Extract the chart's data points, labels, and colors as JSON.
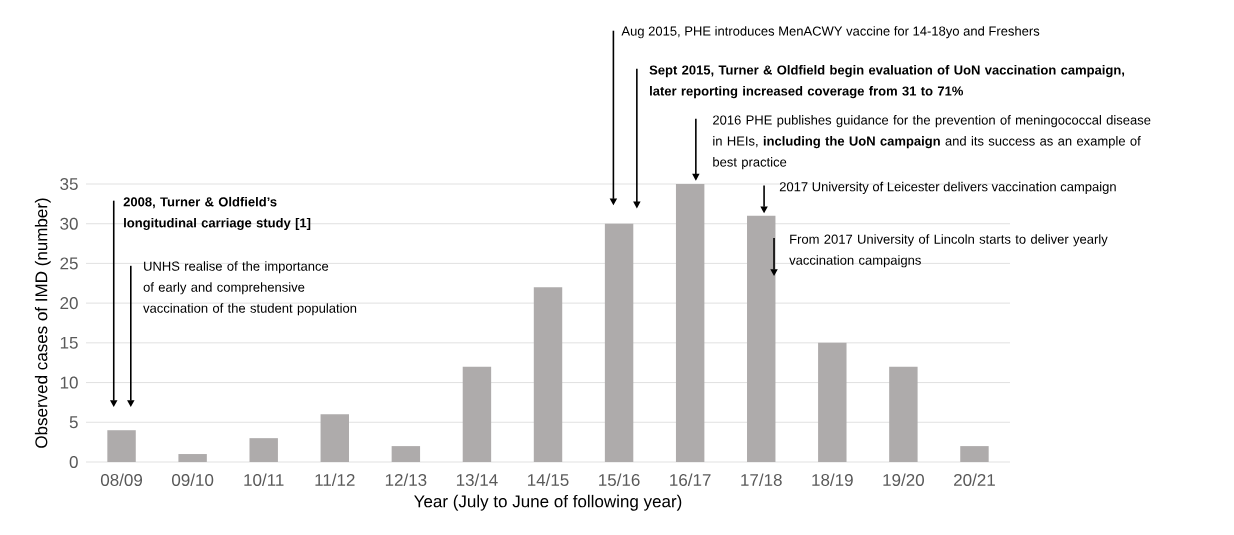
{
  "chart_data": {
    "type": "bar",
    "xlabel": "Year (July to June of following year)",
    "ylabel": "Observed cases of IMD (number)",
    "categories": [
      "08/09",
      "09/10",
      "10/11",
      "11/12",
      "12/13",
      "13/14",
      "14/15",
      "15/16",
      "16/17",
      "17/18",
      "18/19",
      "19/20",
      "20/21"
    ],
    "values": [
      4,
      1,
      3,
      6,
      2,
      12,
      22,
      30,
      35,
      31,
      15,
      12,
      2
    ],
    "color": "#aeabab",
    "ylim": [
      0,
      35
    ],
    "yticks": [
      0,
      5,
      10,
      15,
      20,
      25,
      30,
      35
    ],
    "grid": "y",
    "annotations": [
      "**2008, Turner & Oldfield’s longitudinal carriage study [1]**",
      "UNHS realise of the importance of early and comprehensive vaccination of the student population",
      "Aug 2015, PHE introduces MenACWY vaccine for 14-18yo and Freshers",
      "**Sept 2015, Turner & Oldfield begin evaluation of UoN vaccination campaign, later reporting increased coverage  from 31 to 71%**",
      "2016 PHE publishes guidance for the prevention of meningococcal disease in HEIs, **including the UoN campaign** and its success as an example of best practice",
      "2017 University of Leicester delivers vaccination campaign",
      "From 2017 University of Lincoln starts to deliver yearly vaccination campaigns"
    ]
  }
}
